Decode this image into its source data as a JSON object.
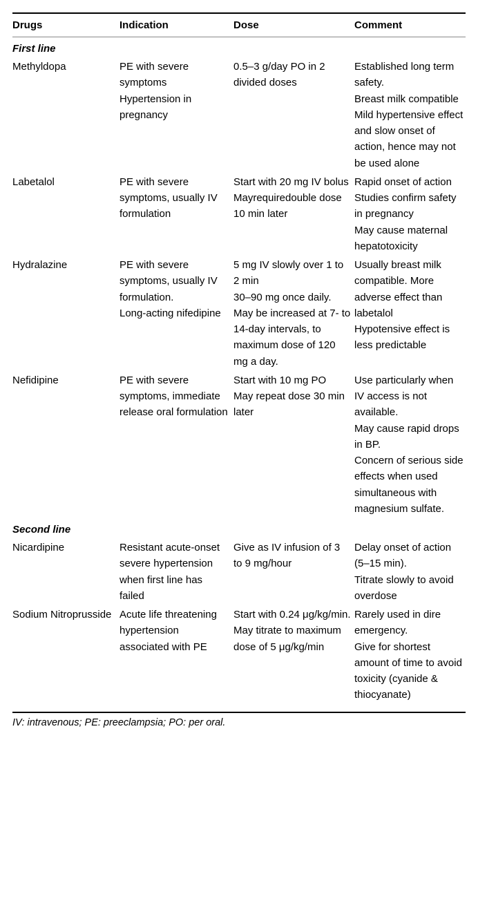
{
  "headers": {
    "drugs": "Drugs",
    "indication": "Indication",
    "dose": "Dose",
    "comment": "Comment"
  },
  "sections": {
    "first": "First line",
    "second": "Second line"
  },
  "rows": {
    "methyldopa": {
      "drug": "Methyldopa",
      "indication": {
        "p1": "PE with severe symptoms",
        "p2": "Hypertension in pregnancy"
      },
      "dose": {
        "p1": "0.5–3 g/day PO in 2 divided doses"
      },
      "comment": {
        "p1": "Established long term safety.",
        "p2": "Breast milk compatible",
        "p3": "Mild hypertensive effect and slow onset of action, hence may not be used alone"
      }
    },
    "labetalol": {
      "drug": "Labetalol",
      "indication": {
        "p1": "PE with severe symptoms, usually IV formulation"
      },
      "dose": {
        "p1": "Start with 20 mg IV bolus",
        "p2": "Mayrequiredouble dose 10 min later"
      },
      "comment": {
        "p1": "Rapid onset of action",
        "p2": "Studies confirm safety in pregnancy",
        "p3": "May cause maternal hepatotoxicity"
      }
    },
    "hydralazine": {
      "drug": "Hydralazine",
      "indication": {
        "p1": "PE with severe symptoms, usually IV formulation.",
        "p2": "Long-acting nifedipine"
      },
      "dose": {
        "p1": "5 mg IV slowly over 1 to 2 min",
        "p2": "30–90 mg once daily. May be increased at 7- to 14-day intervals, to maximum dose of 120 mg a day."
      },
      "comment": {
        "p1": "Usually breast milk compatible. More adverse effect than labetalol",
        "p2": "Hypotensive effect is less predictable"
      }
    },
    "nefidipine": {
      "drug": "Nefidipine",
      "indication": {
        "p1": "PE with severe symptoms, immediate release oral formulation"
      },
      "dose": {
        "p1": "Start with 10 mg PO",
        "p2": "May repeat dose 30 min later"
      },
      "comment": {
        "p1": "Use particularly when IV access is not available.",
        "p2": "May cause rapid drops in BP.",
        "p3": "Concern of serious side effects when used simultaneous with magnesium sulfate."
      }
    },
    "nicardipine": {
      "drug": "Nicardipine",
      "indication": {
        "p1": "Resistant acute-onset severe hypertension when first line has failed"
      },
      "dose": {
        "p1": "Give as IV infusion of 3 to 9 mg/hour"
      },
      "comment": {
        "p1": "Delay onset of action (5–15 min).",
        "p2": "Titrate slowly to avoid overdose"
      }
    },
    "nitroprusside": {
      "drug": "Sodium Nitroprusside",
      "indication": {
        "p1": "Acute life threatening hypertension associated with PE"
      },
      "dose": {
        "p1": "Start with 0.24 μg/kg/min.",
        "p2": "May titrate to maximum dose of 5 μg/kg/min"
      },
      "comment": {
        "p1": "Rarely used in dire emergency.",
        "p2": "Give for shortest amount of time to avoid toxicity (cyanide & thiocyanate)"
      }
    }
  },
  "footnote": "IV: intravenous; PE: preeclampsia; PO: per oral."
}
